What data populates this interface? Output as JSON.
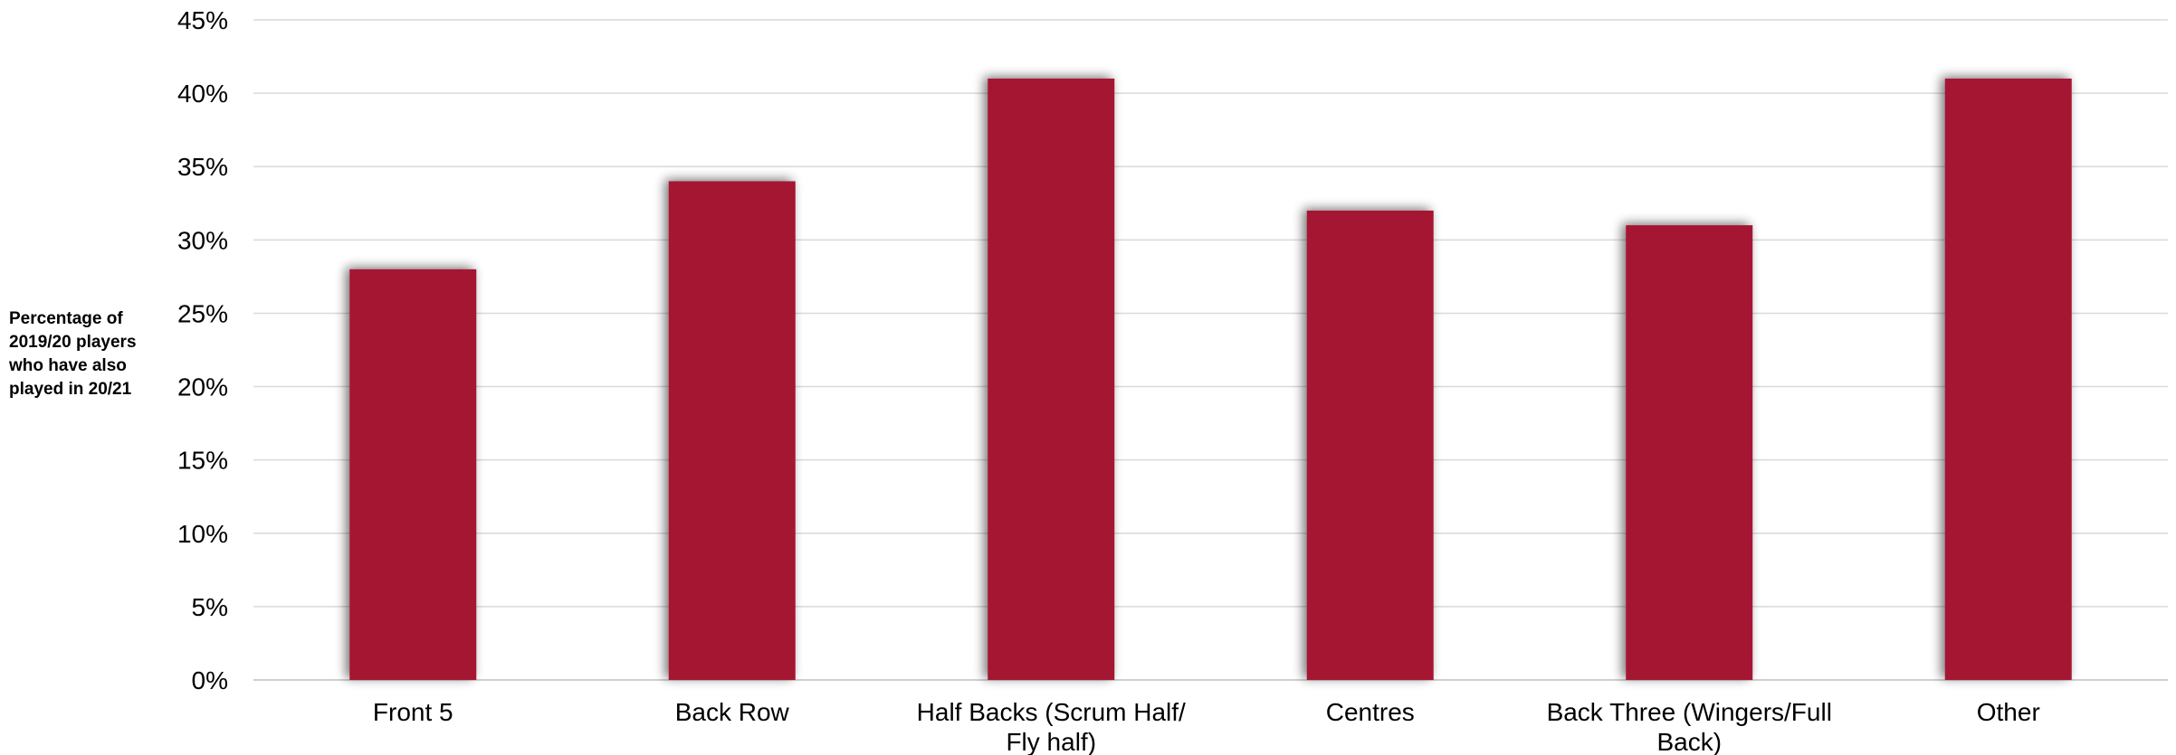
{
  "chart_data": {
    "type": "bar",
    "title": "",
    "xlabel": "",
    "ylabel": "Percentage of 2019/20 players who have also played in 20/21",
    "categories": [
      "Front 5",
      "Back Row",
      "Half Backs (Scrum Half/ Fly half)",
      "Centres",
      "Back Three (Wingers/Full Back)",
      "Other"
    ],
    "category_lines": [
      [
        "Front 5"
      ],
      [
        "Back Row"
      ],
      [
        "Half Backs (Scrum Half/",
        "Fly half)"
      ],
      [
        "Centres"
      ],
      [
        "Back Three (Wingers/Full",
        "Back)"
      ],
      [
        "Other"
      ]
    ],
    "series": [
      {
        "values": [
          28,
          34,
          41,
          32,
          31,
          41
        ]
      }
    ],
    "yticks": [
      "0%",
      "5%",
      "10%",
      "15%",
      "20%",
      "25%",
      "30%",
      "35%",
      "40%",
      "45%"
    ],
    "ylim": [
      0,
      45
    ],
    "grid": true,
    "legend": "none",
    "colors": {
      "bar": "#a51931",
      "grid": "#d9d9d9",
      "axis": "#bfbfbf"
    }
  }
}
